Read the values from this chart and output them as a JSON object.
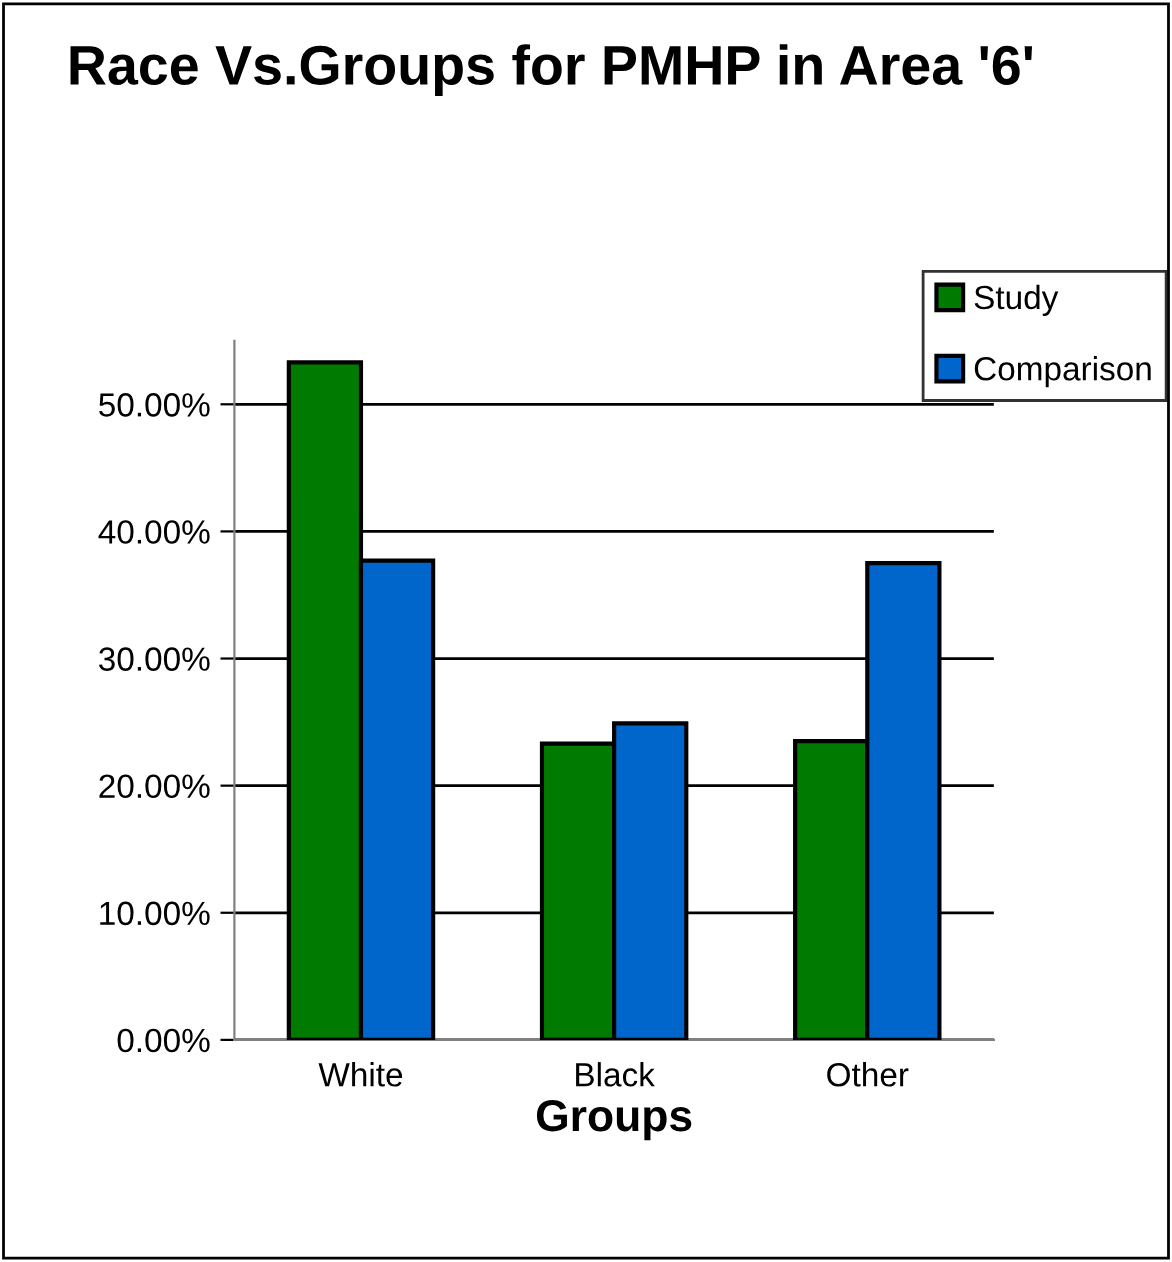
{
  "chart_data": {
    "type": "bar",
    "title": "Race Vs.Groups for PMHP in Area '6'",
    "xlabel": "Groups",
    "categories": [
      "White",
      "Black",
      "Other"
    ],
    "series": [
      {
        "name": "Study",
        "color": "#007a00",
        "values": [
          53.3,
          23.3,
          23.5
        ]
      },
      {
        "name": "Comparison",
        "color": "#0066cc",
        "values": [
          37.7,
          24.9,
          37.5
        ]
      }
    ],
    "ylim": [
      0,
      55
    ],
    "yticks": [
      {
        "value": 0,
        "label": "0.00%"
      },
      {
        "value": 10,
        "label": "10.00%"
      },
      {
        "value": 20,
        "label": "20.00%"
      },
      {
        "value": 30,
        "label": "30.00%"
      },
      {
        "value": 40,
        "label": "40.00%"
      },
      {
        "value": 50,
        "label": "50.00%"
      }
    ],
    "grid": "y",
    "legend": "top right"
  }
}
